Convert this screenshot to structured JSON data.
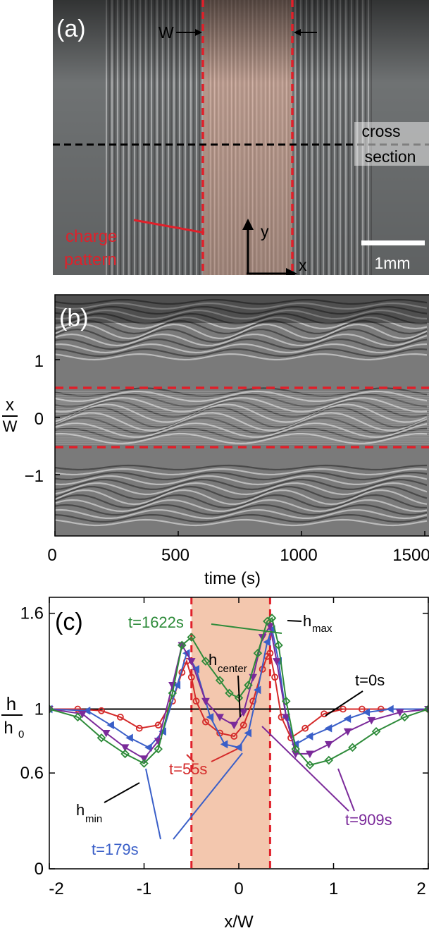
{
  "panel_a": {
    "label": "(a)",
    "width_label": "W",
    "cross_section_line1": "cross",
    "cross_section_line2": "section",
    "charge_pattern_line1": "charge",
    "charge_pattern_line2": "pattern",
    "axis_y": "y",
    "axis_x": "x",
    "scale_bar": "1mm",
    "colors": {
      "charge_region": "#f0b8a0",
      "dashed_red": "#e0202a",
      "dashed_black": "#000000"
    }
  },
  "panel_b": {
    "label": "(b)",
    "ylabel_num": "x",
    "ylabel_den": "W",
    "yticks": [
      "1",
      "0",
      "−1"
    ],
    "xticks": [
      "0",
      "500",
      "1000",
      "1500"
    ],
    "xlabel": "time (s)"
  },
  "chart_data": [
    {
      "type": "line",
      "panel": "c",
      "label": "(c)",
      "xlabel": "x/W",
      "ylabel_num": "h",
      "ylabel_den": "h",
      "ylabel_den_sub": "0",
      "xlim": [
        -2,
        2
      ],
      "ylim": [
        0,
        1.7
      ],
      "xticks": [
        "-2",
        "-1",
        "0",
        "1",
        "2"
      ],
      "yticks": [
        "0",
        "0.6",
        "1",
        "1.6"
      ],
      "shaded_region": [
        -0.5,
        0.33
      ],
      "annotations": {
        "h_max": "h",
        "h_max_sub": "max",
        "h_center": "h",
        "h_center_sub": "center",
        "h_min": "h",
        "h_min_sub": "min"
      },
      "series": [
        {
          "name": "t=0s",
          "color": "#000000",
          "marker": "none",
          "x": [
            -2,
            2
          ],
          "y": [
            1,
            1
          ]
        },
        {
          "name": "t=55s",
          "color": "#d42a2a",
          "marker": "circle",
          "x": [
            -2,
            -1.7,
            -1.45,
            -1.25,
            -1.05,
            -0.85,
            -0.7,
            -0.6,
            -0.55,
            -0.5,
            -0.45,
            -0.35,
            -0.2,
            -0.05,
            0.05,
            0.15,
            0.25,
            0.3,
            0.33,
            0.38,
            0.45,
            0.55,
            0.7,
            0.9,
            1.1,
            1.3,
            1.5,
            2
          ],
          "y": [
            1,
            1,
            0.99,
            0.95,
            0.88,
            0.9,
            1.05,
            1.23,
            1.3,
            1.2,
            1.05,
            0.92,
            0.85,
            0.83,
            0.9,
            1.05,
            1.25,
            1.33,
            1.35,
            1.2,
            0.95,
            0.82,
            0.88,
            0.97,
            1,
            1,
            1,
            1
          ]
        },
        {
          "name": "t=179s",
          "color": "#3a5fc8",
          "marker": "tri-left",
          "x": [
            -2,
            -1.6,
            -1.35,
            -1.15,
            -0.95,
            -0.8,
            -0.65,
            -0.55,
            -0.45,
            -0.3,
            -0.15,
            0,
            0.1,
            0.2,
            0.3,
            0.35,
            0.42,
            0.5,
            0.6,
            0.75,
            0.95,
            1.15,
            1.35,
            1.6,
            2
          ],
          "y": [
            1,
            0.99,
            0.9,
            0.82,
            0.76,
            0.86,
            1.15,
            1.35,
            1.25,
            0.95,
            0.78,
            0.76,
            0.85,
            1.12,
            1.42,
            1.5,
            1.3,
            0.95,
            0.78,
            0.83,
            0.88,
            0.94,
            0.98,
            1,
            1
          ]
        },
        {
          "name": "t=909s",
          "color": "#7b2a9a",
          "marker": "tri-down",
          "x": [
            -2,
            -1.65,
            -1.4,
            -1.2,
            -1.0,
            -0.85,
            -0.7,
            -0.6,
            -0.5,
            -0.35,
            -0.2,
            -0.05,
            0.05,
            0.15,
            0.25,
            0.33,
            0.4,
            0.5,
            0.6,
            0.75,
            0.95,
            1.15,
            1.4,
            1.7,
            2
          ],
          "y": [
            1,
            0.97,
            0.85,
            0.76,
            0.69,
            0.8,
            1.15,
            1.4,
            1.3,
            1.05,
            0.95,
            0.9,
            0.98,
            1.2,
            1.45,
            1.52,
            1.3,
            0.95,
            0.72,
            0.72,
            0.78,
            0.86,
            0.93,
            0.98,
            1
          ]
        },
        {
          "name": "t=1622s",
          "color": "#2e8b3a",
          "marker": "diamond",
          "x": [
            -2,
            -1.7,
            -1.45,
            -1.2,
            -1.0,
            -0.85,
            -0.7,
            -0.6,
            -0.5,
            -0.35,
            -0.2,
            -0.1,
            0,
            0.1,
            0.2,
            0.3,
            0.35,
            0.42,
            0.5,
            0.6,
            0.75,
            0.95,
            1.2,
            1.45,
            1.75,
            2
          ],
          "y": [
            1,
            0.95,
            0.82,
            0.72,
            0.66,
            0.75,
            1.1,
            1.4,
            1.45,
            1.3,
            1.18,
            1.1,
            1.07,
            1.15,
            1.35,
            1.55,
            1.57,
            1.4,
            1.05,
            0.75,
            0.65,
            0.68,
            0.76,
            0.86,
            0.95,
            1
          ]
        }
      ]
    }
  ]
}
